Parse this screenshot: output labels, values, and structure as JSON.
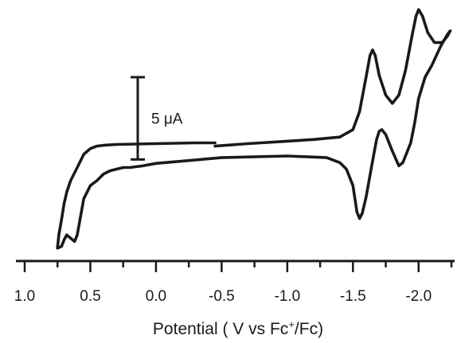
{
  "chart_data": {
    "type": "line",
    "title": "",
    "xlabel": {
      "prefix": "Potential ( V vs Fc",
      "superscript": "+",
      "suffix": "/Fc)"
    },
    "ylabel": "",
    "x_reversed": true,
    "xlim": [
      1.0,
      -2.25
    ],
    "ylim": [
      -6,
      9
    ],
    "x_ticks": [
      {
        "value": 1.0,
        "label": "1.0"
      },
      {
        "value": 0.5,
        "label": "0.5"
      },
      {
        "value": 0.0,
        "label": "0.0"
      },
      {
        "value": -0.5,
        "label": "-0.5"
      },
      {
        "value": -1.0,
        "label": "-1.0"
      },
      {
        "value": -1.5,
        "label": "-1.5"
      },
      {
        "value": -2.0,
        "label": "-2.0"
      }
    ],
    "scale_bar": {
      "value": 5,
      "label": "5 μA"
    },
    "series": [
      {
        "x": [
          -0.45,
          -0.7,
          -1.0,
          -1.2,
          -1.4,
          -1.5,
          -1.55,
          -1.6,
          -1.63,
          -1.65,
          -1.67,
          -1.7,
          -1.75,
          -1.8,
          -1.85,
          -1.9,
          -1.95,
          -1.98,
          -2.0,
          -2.03,
          -2.07,
          -2.12,
          -2.18,
          -2.22,
          -2.24
        ],
        "y": [
          0.6,
          0.75,
          0.9,
          1.0,
          1.15,
          1.6,
          2.7,
          4.8,
          6.1,
          6.45,
          6.1,
          4.9,
          3.7,
          3.2,
          3.7,
          5.2,
          7.3,
          8.5,
          8.9,
          8.5,
          7.5,
          6.9,
          6.9,
          7.3,
          7.6
        ]
      },
      {
        "x": [
          -2.24,
          -2.22,
          -2.17,
          -2.1,
          -2.05,
          -2.0,
          -1.97,
          -1.94,
          -1.9,
          -1.88,
          -1.85,
          -1.8,
          -1.75,
          -1.72,
          -1.7,
          -1.68,
          -1.65,
          -1.6,
          -1.57,
          -1.55,
          -1.53,
          -1.5,
          -1.45,
          -1.4,
          -1.3,
          -1.0,
          -0.5,
          0.0,
          0.1,
          0.2,
          0.25,
          0.3,
          0.35,
          0.4,
          0.45,
          0.5,
          0.55,
          0.6,
          0.62,
          0.65,
          0.68,
          0.7,
          0.72,
          0.75
        ],
        "y": [
          7.6,
          7.4,
          6.7,
          5.5,
          4.8,
          3.5,
          2.0,
          0.8,
          0.0,
          -0.4,
          -0.6,
          0.3,
          1.3,
          1.6,
          1.5,
          1.0,
          -0.3,
          -2.5,
          -3.5,
          -3.8,
          -3.4,
          -1.8,
          -0.8,
          -0.4,
          -0.1,
          0.0,
          -0.1,
          -0.45,
          -0.6,
          -0.7,
          -0.7,
          -0.8,
          -0.9,
          -1.1,
          -1.5,
          -1.8,
          -2.6,
          -4.8,
          -5.2,
          -5.0,
          -4.8,
          -5.1,
          -5.5,
          -5.6
        ]
      },
      {
        "x": [
          0.75,
          0.74,
          0.72,
          0.7,
          0.68,
          0.65,
          0.6,
          0.55,
          0.5,
          0.45,
          0.4,
          0.3,
          0.0,
          -0.3,
          -0.45
        ],
        "y": [
          -5.6,
          -4.8,
          -3.9,
          -2.9,
          -2.2,
          -1.5,
          -0.7,
          0.1,
          0.45,
          0.6,
          0.65,
          0.7,
          0.75,
          0.8,
          0.8
        ]
      }
    ]
  }
}
